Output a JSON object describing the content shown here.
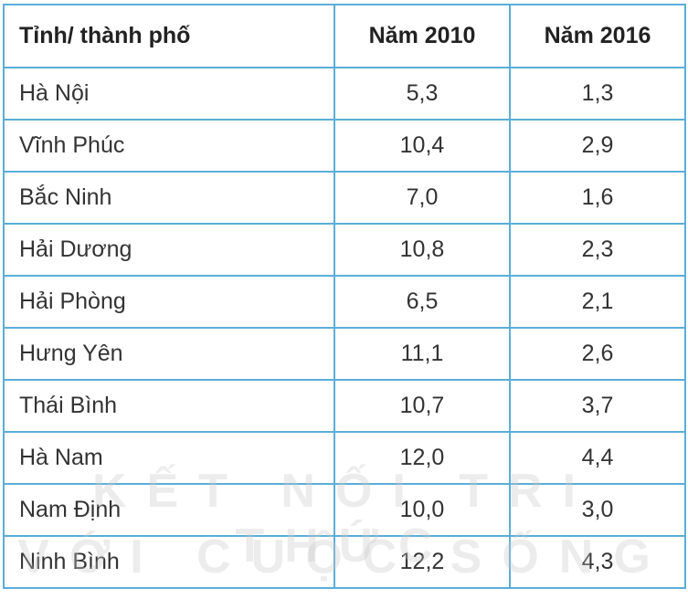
{
  "table": {
    "header": [
      "Tỉnh/ thành phố",
      "Năm 2010",
      "Năm 2016"
    ],
    "rows": [
      [
        "Hà Nội",
        "5,3",
        "1,3"
      ],
      [
        "Vĩnh Phúc",
        "10,4",
        "2,9"
      ],
      [
        "Bắc Ninh",
        "7,0",
        "1,6"
      ],
      [
        "Hải Dương",
        "10,8",
        "2,3"
      ],
      [
        "Hải Phòng",
        "6,5",
        "2,1"
      ],
      [
        "Hưng Yên",
        "11,1",
        "2,6"
      ],
      [
        "Thái Bình",
        "10,7",
        "3,7"
      ],
      [
        "Hà Nam",
        "12,0",
        "4,4"
      ],
      [
        "Nam Định",
        "10,0",
        "3,0"
      ],
      [
        "Ninh Bình",
        "12,2",
        "4,3"
      ]
    ]
  },
  "watermark": [
    "KẾT NỐI TRI THỨC",
    "VỚI CUỘC SỐNG"
  ]
}
